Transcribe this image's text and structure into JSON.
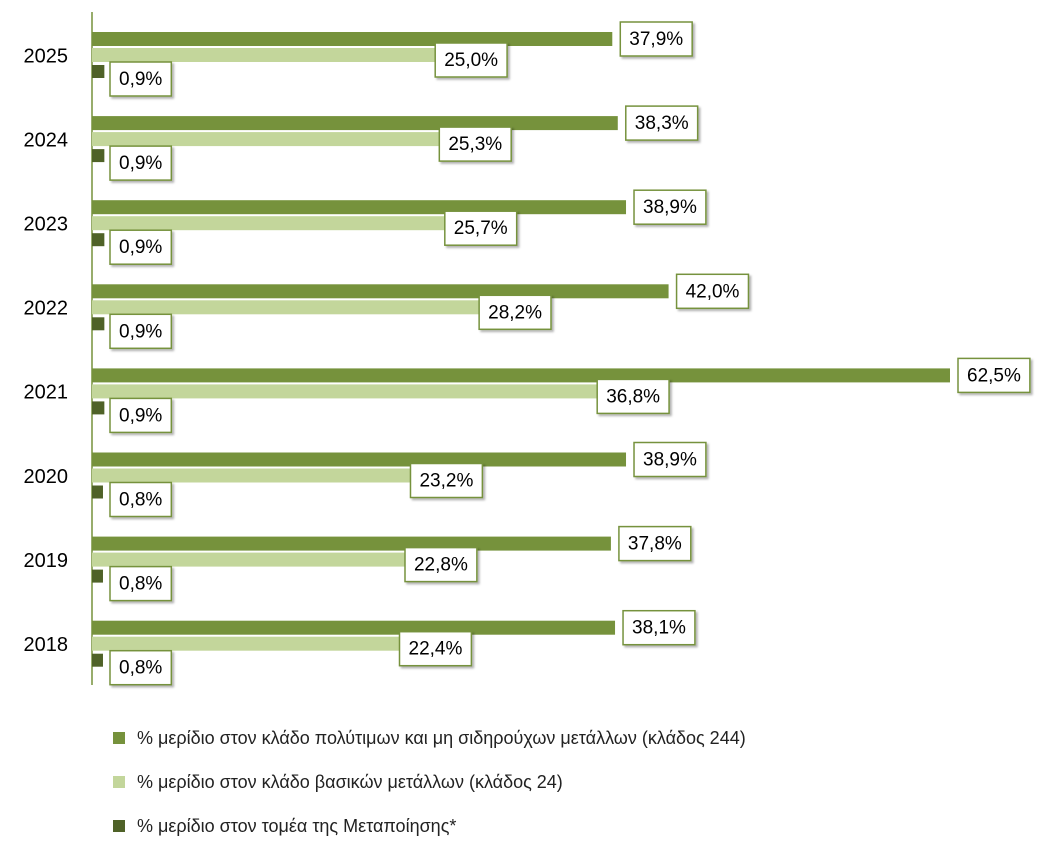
{
  "chart_data": {
    "type": "bar",
    "orientation": "horizontal",
    "categories": [
      "2025",
      "2024",
      "2023",
      "2022",
      "2021",
      "2020",
      "2019",
      "2018"
    ],
    "series": [
      {
        "name": "% μερίδιο στον κλάδο πολύτιμων και μη σιδηρούχων μετάλλων (κλάδος 244)",
        "color": "#76923c",
        "values": [
          37.9,
          38.3,
          38.9,
          42.0,
          62.5,
          38.9,
          37.8,
          38.1
        ],
        "value_labels": [
          "37,9%",
          "38,3%",
          "38,9%",
          "42,0%",
          "62,5%",
          "38,9%",
          "37,8%",
          "38,1%"
        ]
      },
      {
        "name": "% μερίδιο στον κλάδο βασικών μετάλλων (κλάδος 24)",
        "color": "#c3d69b",
        "values": [
          25.0,
          25.3,
          25.7,
          28.2,
          36.8,
          23.2,
          22.8,
          22.4
        ],
        "value_labels": [
          "25,0%",
          "25,3%",
          "25,7%",
          "28,2%",
          "36,8%",
          "23,2%",
          "22,8%",
          "22,4%"
        ]
      },
      {
        "name": "% μερίδιο στον τομέα της Μεταποίησης*",
        "color": "#4f6228",
        "values": [
          0.9,
          0.9,
          0.9,
          0.9,
          0.9,
          0.8,
          0.8,
          0.8
        ],
        "value_labels": [
          "0,9%",
          "0,9%",
          "0,9%",
          "0,9%",
          "0,9%",
          "0,8%",
          "0,8%",
          "0,8%"
        ]
      }
    ],
    "legend": "bottom"
  }
}
